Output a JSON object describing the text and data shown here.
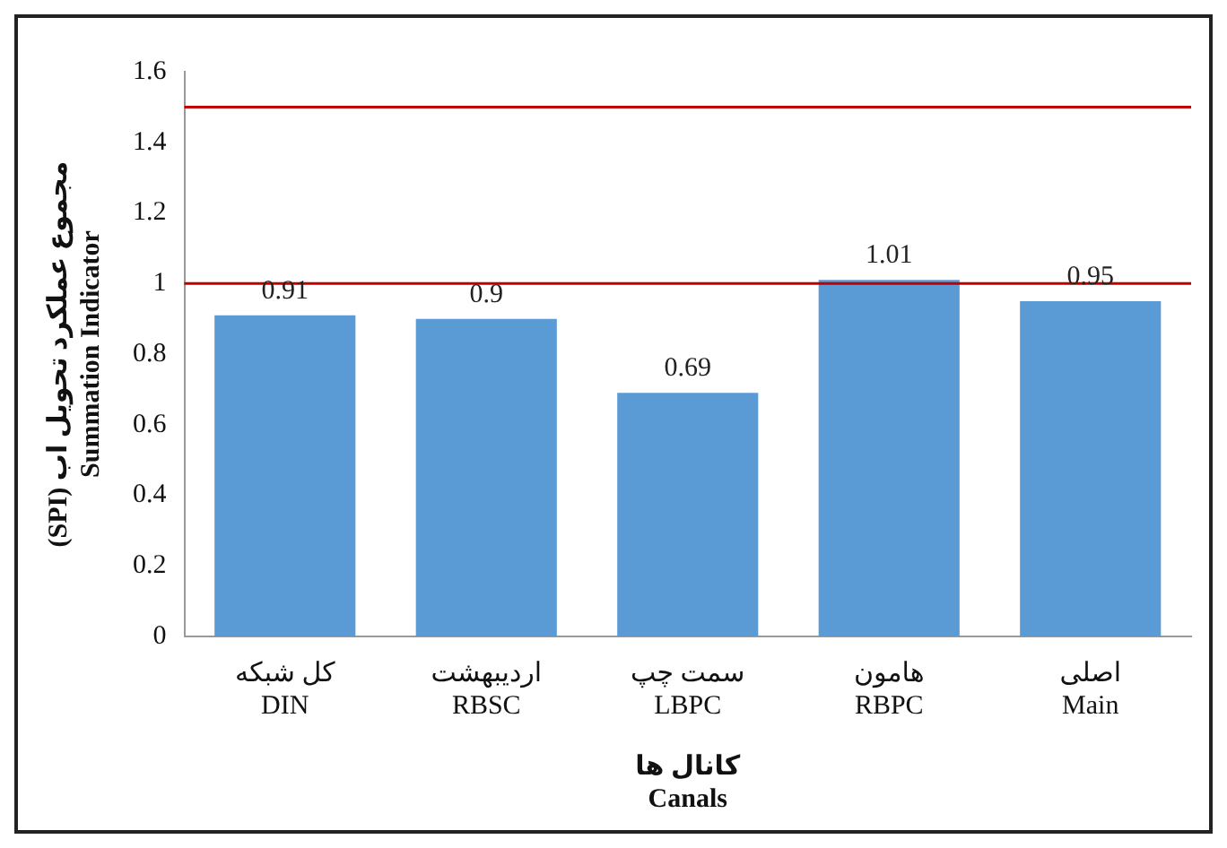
{
  "chart_data": {
    "type": "bar",
    "xlabel": "کانال ها\nCanals",
    "ylabel": "(SPI) مجموع عملکرد تحویل اب\nSummation Indicator",
    "categories": [
      "کل شبکه\nDIN",
      "اردیبهشت\nRBSC",
      "سمت چپ\nLBPC",
      "هامون\nRBPC",
      "اصلی\nMain"
    ],
    "values": [
      0.91,
      0.9,
      0.69,
      1.01,
      0.95
    ],
    "color": "#5b9bd5",
    "ylim": [
      0,
      1.6
    ],
    "yticks": [
      0,
      0.2,
      0.4,
      0.6,
      0.8,
      1,
      1.2,
      1.4,
      1.6
    ],
    "ref_lines": [
      {
        "axis": "y",
        "value": 1,
        "color": "#c00000"
      },
      {
        "axis": "y",
        "value": 1.5,
        "color": "#c00000"
      }
    ],
    "data_labels": true,
    "grid": false,
    "legend": false
  }
}
